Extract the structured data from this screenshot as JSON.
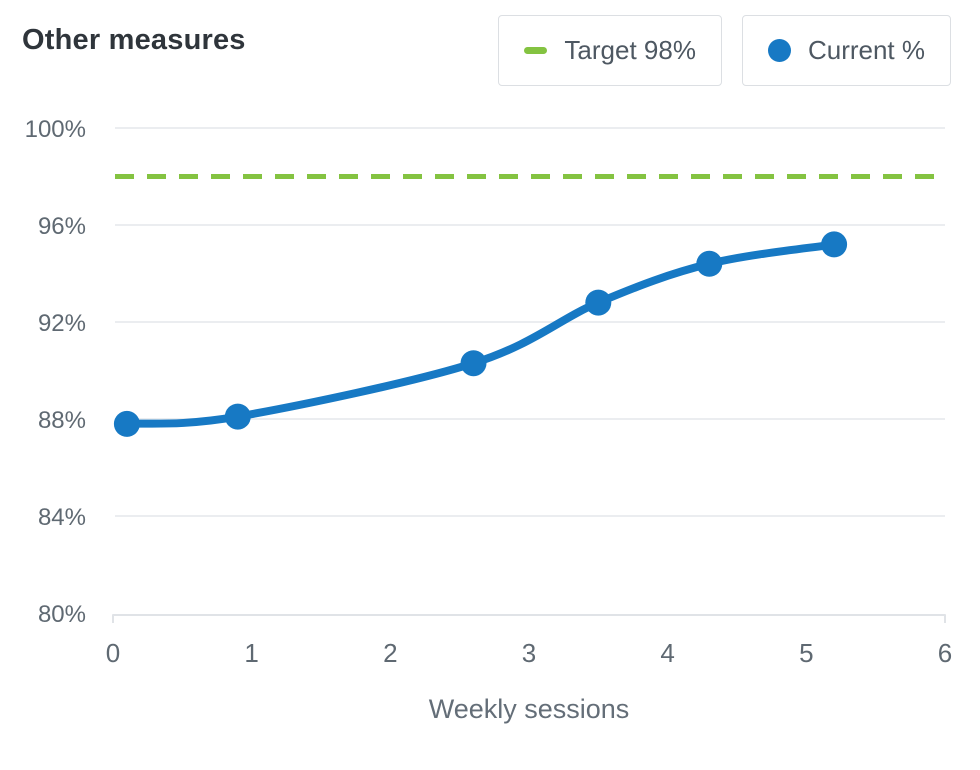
{
  "header": {
    "title": "Other measures"
  },
  "legend": {
    "target_label": "Target 98%",
    "current_label": "Current %"
  },
  "colors": {
    "current_blue": "#1779c4",
    "target_green": "#84c341",
    "grid": "#ebedf0",
    "axis_line": "#e0e3e7",
    "tick_text": "#5f6972"
  },
  "chart_data": {
    "type": "line",
    "title": "Other measures",
    "xlabel": "Weekly sessions",
    "ylabel": "",
    "x": [
      0.1,
      0.9,
      2.6,
      3.5,
      4.3,
      5.2
    ],
    "series": [
      {
        "name": "Current %",
        "values": [
          87.8,
          88.1,
          90.3,
          92.8,
          94.4,
          95.2
        ]
      }
    ],
    "target": {
      "name": "Target 98%",
      "value": 98,
      "style": "dashed"
    },
    "xlim": [
      0,
      6
    ],
    "ylim": [
      80,
      100
    ],
    "xticks": [
      0,
      1,
      2,
      3,
      4,
      5,
      6
    ],
    "xtick_labels": [
      "0",
      "1",
      "2",
      "3",
      "4",
      "5",
      "6"
    ],
    "yticks": [
      100,
      96,
      92,
      88,
      84,
      80
    ],
    "ytick_labels": [
      "100%",
      "96%",
      "92%",
      "88%",
      "84%",
      "80%"
    ],
    "grid": true,
    "curve": "smooth",
    "legend_position": "top-right"
  }
}
